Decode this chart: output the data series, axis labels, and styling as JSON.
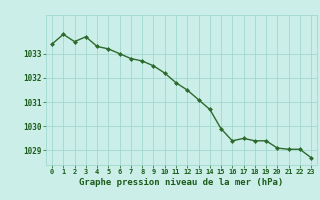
{
  "x": [
    0,
    1,
    2,
    3,
    4,
    5,
    6,
    7,
    8,
    9,
    10,
    11,
    12,
    13,
    14,
    15,
    16,
    17,
    18,
    19,
    20,
    21,
    22,
    23
  ],
  "y": [
    1033.4,
    1033.8,
    1033.5,
    1033.7,
    1033.3,
    1033.2,
    1033.0,
    1032.8,
    1032.7,
    1032.5,
    1032.2,
    1031.8,
    1031.5,
    1031.1,
    1030.7,
    1029.9,
    1029.4,
    1029.5,
    1029.4,
    1029.4,
    1029.1,
    1029.05,
    1029.05,
    1028.7
  ],
  "line_color": "#2d6a2d",
  "marker": "D",
  "marker_size": 2.0,
  "line_width": 1.0,
  "ylim": [
    1028.4,
    1034.6
  ],
  "yticks": [
    1029,
    1030,
    1031,
    1032,
    1033
  ],
  "xticks": [
    0,
    1,
    2,
    3,
    4,
    5,
    6,
    7,
    8,
    9,
    10,
    11,
    12,
    13,
    14,
    15,
    16,
    17,
    18,
    19,
    20,
    21,
    22,
    23
  ],
  "xlabel": "Graphe pression niveau de la mer (hPa)",
  "background_color": "#cceee8",
  "grid_color": "#99d4cc",
  "label_color": "#1a5c1a",
  "xlabel_fontsize": 6.5,
  "tick_fontsize": 5.0,
  "ytick_fontsize": 5.5
}
